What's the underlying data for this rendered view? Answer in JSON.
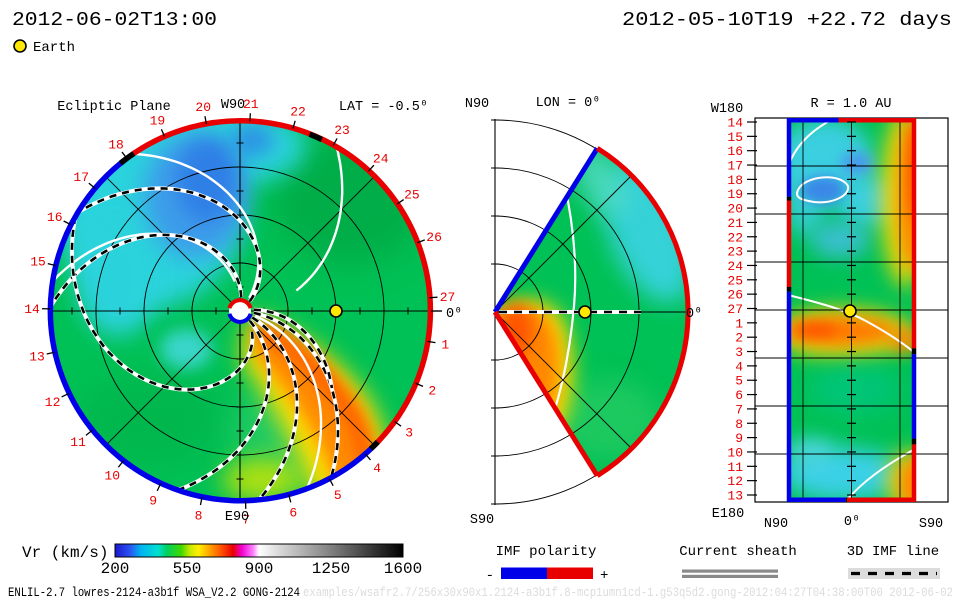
{
  "header": {
    "current_time": "2012-06-02T13:00",
    "start_time_and_elapsed": "2012-05-10T19 +22.72 days",
    "earth_legend_label": "Earth",
    "earth_color": "#ffe800"
  },
  "ecliptic": {
    "title": "Ecliptic Plane",
    "lat_label": "LAT = -0.5⁰",
    "top_label": "W90",
    "bottom_label": "E90",
    "lon_zero_label": "0⁰",
    "day_labels": [
      "27",
      "1",
      "2",
      "3",
      "4",
      "5",
      "6",
      "7",
      "8",
      "9",
      "10",
      "11",
      "12",
      "13",
      "14",
      "15",
      "16",
      "17",
      "18",
      "19",
      "20",
      "21",
      "22",
      "23",
      "24",
      "25",
      "26"
    ],
    "day_start_angle_deg": 4,
    "day_step_deg": -13.19,
    "rim_segments": [
      {
        "a0": -45,
        "a1": 126,
        "c": "pos"
      },
      {
        "a0": 126,
        "a1": 315,
        "c": "neg"
      },
      {
        "a0": 124,
        "a1": 129,
        "c": "blk"
      },
      {
        "a0": 64.5,
        "a1": 68.5,
        "c": "blk"
      },
      {
        "a0": -46.5,
        "a1": -43.5,
        "c": "blk"
      }
    ]
  },
  "meridional": {
    "title": "LON = 0⁰",
    "top_label": "N90",
    "bottom_label": "S90",
    "zero_label": "0⁰"
  },
  "radial_map": {
    "title": "R = 1.0 AU",
    "top_left_label": "W180",
    "bottom_left_label": "E180",
    "x_axis_labels": [
      "N90",
      "0⁰",
      "S90"
    ],
    "row_labels": [
      "14",
      "15",
      "16",
      "17",
      "18",
      "19",
      "20",
      "21",
      "22",
      "23",
      "24",
      "25",
      "26",
      "27",
      "1",
      "2",
      "3",
      "4",
      "5",
      "6",
      "7",
      "8",
      "9",
      "10",
      "11",
      "12",
      "13"
    ],
    "border_segments": {
      "left": [
        {
          "f0": 0,
          "f1": 0.205,
          "c": "neg"
        },
        {
          "f0": 0.205,
          "f1": 0.215,
          "c": "blk"
        },
        {
          "f0": 0.215,
          "f1": 0.44,
          "c": "pos"
        },
        {
          "f0": 0.44,
          "f1": 0.452,
          "c": "blk"
        },
        {
          "f0": 0.452,
          "f1": 1,
          "c": "neg"
        }
      ],
      "right": [
        {
          "f0": 0,
          "f1": 0.6,
          "c": "pos"
        },
        {
          "f0": 0.6,
          "f1": 0.615,
          "c": "blk"
        },
        {
          "f0": 0.615,
          "f1": 0.835,
          "c": "neg"
        },
        {
          "f0": 0.835,
          "f1": 0.85,
          "c": "blk"
        },
        {
          "f0": 0.85,
          "f1": 1,
          "c": "pos"
        }
      ],
      "top": [
        {
          "f0": 0,
          "f1": 0.4,
          "c": "neg"
        },
        {
          "f0": 0.4,
          "f1": 1,
          "c": "pos"
        }
      ],
      "bottom": [
        {
          "f0": 0,
          "f1": 0.455,
          "c": "neg"
        },
        {
          "f0": 0.455,
          "f1": 0.465,
          "c": "blk"
        },
        {
          "f0": 0.465,
          "f1": 1,
          "c": "pos"
        }
      ]
    }
  },
  "colorbar": {
    "label": "Vr (km/s)",
    "ticks": [
      "200",
      "550",
      "900",
      "1250",
      "1600"
    ],
    "gradient": [
      [
        0,
        "#1818d0"
      ],
      [
        0.05,
        "#2b50f0"
      ],
      [
        0.09,
        "#00b4f0"
      ],
      [
        0.15,
        "#00e0d0"
      ],
      [
        0.18,
        "#00d060"
      ],
      [
        0.23,
        "#40d800"
      ],
      [
        0.26,
        "#c8e800"
      ],
      [
        0.29,
        "#fff000"
      ],
      [
        0.33,
        "#ffa000"
      ],
      [
        0.37,
        "#ff5000"
      ],
      [
        0.41,
        "#e80000"
      ],
      [
        0.44,
        "#f000d0"
      ],
      [
        0.48,
        "#ff80ff"
      ],
      [
        0.5,
        "#ffffff"
      ],
      [
        0.56,
        "#dedede"
      ],
      [
        0.75,
        "#808080"
      ],
      [
        1,
        "#000000"
      ]
    ]
  },
  "legends": {
    "imf": {
      "title": "IMF polarity",
      "minus": "-",
      "plus": "+",
      "neg_color": "#0000e8",
      "pos_color": "#e80000"
    },
    "sheath": {
      "title": "Current sheath",
      "bar_color": "#8a8a8a"
    },
    "imf_line": {
      "title": "3D IMF line",
      "bg_color": "#dcdcdc"
    }
  },
  "footer": {
    "model_info": "ENLIL-2.7 lowres-2124-a3b1f WSA_V2.2 GONG-2124",
    "watermark": "examples/wsafr2.7/256x30x90x1.2124-a3b1f.8-mcp1umn1cd-1.g53q5d2.gong-2012:04:27T04:38:00T00  2012-06-02"
  },
  "chart_data": [
    {
      "type": "heatmap",
      "subplot": "Ecliptic Plane",
      "projection": "polar, Sun at center, heliocentric ecliptic cut at LAT = -0.5 deg",
      "quantity": "Vr (km/s)",
      "color_scale": {
        "min": 200,
        "max": 1600,
        "ticks": [
          200,
          550,
          900,
          1250,
          1600
        ]
      },
      "radial_rings_au": [
        0.5,
        1.0,
        1.5
      ],
      "earth_marker": {
        "r_au": 1.0,
        "angle_deg": 0
      },
      "angular_tick_labels_day_of_month": [
        27,
        1,
        2,
        3,
        4,
        5,
        6,
        7,
        8,
        9,
        10,
        11,
        12,
        13,
        14,
        15,
        16,
        17,
        18,
        19,
        20,
        21,
        22,
        23,
        24,
        25,
        26
      ],
      "compass": {
        "top": "W90",
        "bottom": "E90",
        "right": "0 deg"
      },
      "features": [
        {
          "region": "NW quadrant and top sector",
          "approx_value_kms": "250-350 (blue/cyan slow wind)"
        },
        {
          "region": "most of disk",
          "approx_value_kms": "350-450 (green)"
        },
        {
          "region": "spiral stream Sun to SE rim near day ticks 3-6",
          "approx_value_kms": "550-750 (yellow/orange fast stream)"
        }
      ],
      "overlays": [
        "white solid lines: current sheath",
        "black/white dashed spirals: 3D IMF lines",
        "rim colored by IMF polarity (blue -, red +)"
      ]
    },
    {
      "type": "heatmap",
      "subplot": "Meridional plane LON = 0 deg",
      "projection": "polar wedge +/-60 deg latitude, N90 top, S90 bottom",
      "quantity": "Vr (km/s)",
      "earth_marker": {
        "r_au": 1.0,
        "lat_deg": -0.5
      },
      "features": [
        {
          "region": "low latitudes near Sun",
          "approx_value_kms": "600-750 (orange)"
        },
        {
          "region": "bulk of wedge",
          "approx_value_kms": "350-450 (green)"
        },
        {
          "region": "outer radii, northern half",
          "approx_value_kms": "300-350 (cyan)"
        }
      ],
      "overlays": [
        "wedge boundary: blue (-) on north edge, red (+) on outer arc and south edge",
        "dashed line to Earth: 3D IMF line"
      ]
    },
    {
      "type": "heatmap",
      "subplot": "R = 1.0 AU",
      "projection": "longitude (W180 top to E180 bottom, day-of-month rows 14..27,1..13) vs latitude (N90 to S90)",
      "quantity": "Vr (km/s)",
      "earth_marker": {
        "row_day": 27,
        "lat_deg": 0
      },
      "features": [
        {
          "region": "rows 14-19, northern half",
          "approx_value_kms": "250-350 (cyan/blue)"
        },
        {
          "region": "southern edge column rows 14-24",
          "approx_value_kms": "600-750 (orange)"
        },
        {
          "region": "band rows 1-3",
          "approx_value_kms": "600-750 (orange)"
        },
        {
          "region": "rows 4-9",
          "approx_value_kms": "350-450 (green)"
        },
        {
          "region": "rows 10-13",
          "approx_value_kms": "300-350 (cyan)"
        },
        {
          "region": "SE corner rows 11-13",
          "approx_value_kms": "600-700 (orange)"
        }
      ],
      "overlays": [
        "frame edges colored by IMF polarity (blue -, red +)",
        "white lines: current sheath crossings"
      ]
    }
  ]
}
